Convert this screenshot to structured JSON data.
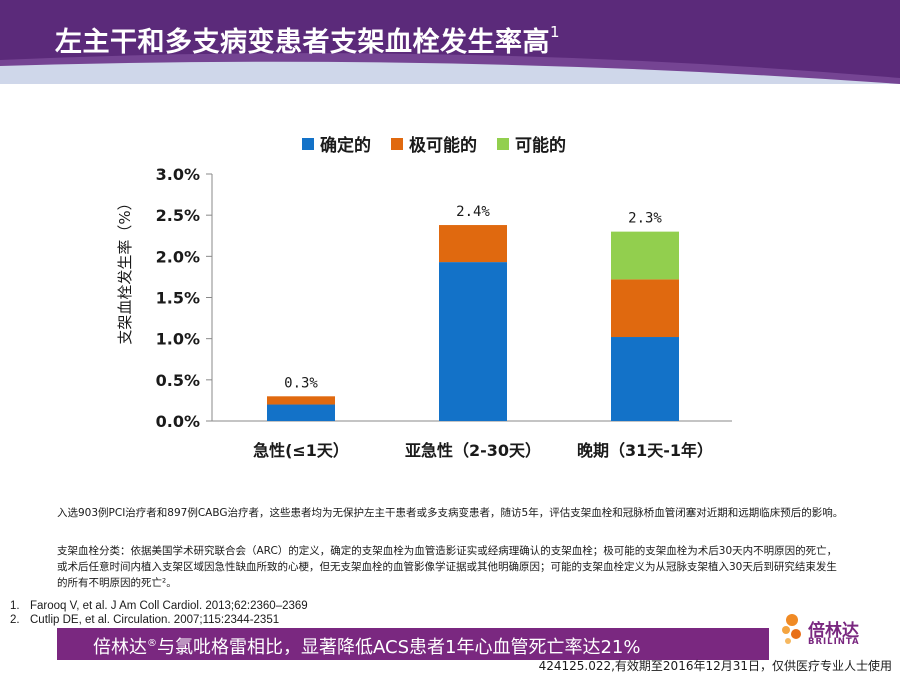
{
  "header": {
    "title": "左主干和多支病变患者支架血栓发生率高",
    "title_ref": "1",
    "colors": {
      "band": "#5b2a7a",
      "band_light": "#6e3a8f",
      "stripe": "#cfd7ea"
    }
  },
  "legend": [
    {
      "label": "确定的",
      "color": "#1372c8"
    },
    {
      "label": "极可能的",
      "color": "#e0690f"
    },
    {
      "label": "可能的",
      "color": "#92cf4e"
    }
  ],
  "chart_data": {
    "type": "bar",
    "stacked": true,
    "categories": [
      "急性(≤1天）",
      "亚急性（2-30天）",
      "晚期（31天-1年）"
    ],
    "series": [
      {
        "name": "确定的",
        "color": "#1372c8",
        "values": [
          0.2,
          1.93,
          1.02
        ]
      },
      {
        "name": "极可能的",
        "color": "#e0690f",
        "values": [
          0.1,
          0.45,
          0.7
        ]
      },
      {
        "name": "可能的",
        "color": "#92cf4e",
        "values": [
          0.0,
          0.0,
          0.58
        ]
      }
    ],
    "totals": [
      "0.3%",
      "2.4%",
      "2.3%"
    ],
    "ylabel": "支架血栓发生率（%）",
    "ylim": [
      0,
      3.0
    ],
    "yticks": [
      "0.0%",
      "0.5%",
      "1.0%",
      "1.5%",
      "2.0%",
      "2.5%",
      "3.0%"
    ],
    "legend_position": "top",
    "grid": false
  },
  "notes": {
    "para1": "入选903例PCI治疗者和897例CABG治疗者，这些患者均为无保护左主干患者或多支病变患者，随访5年，评估支架血栓和冠脉桥血管闭塞对近期和远期临床预后的影响。",
    "para2": "支架血栓分类：依据美国学术研究联合会（ARC）的定义，确定的支架血栓为血管造影证实或经病理确认的支架血栓；极可能的支架血栓为术后30天内不明原因的死亡，或术后任意时间内植入支架区域因急性缺血所致的心梗，但无支架血栓的血管影像学证据或其他明确原因；可能的支架血栓定义为从冠脉支架植入30天后到研究结束发生的所有不明原因的死亡²。"
  },
  "references": [
    {
      "num": "1.",
      "text": "Farooq V, et al. J Am Coll Cardiol. 2013;62:2360–2369"
    },
    {
      "num": "2.",
      "text": "Cutlip DE, et al. Circulation. 2007;115:2344-2351"
    }
  ],
  "bottom_bar": {
    "brand": "倍林达",
    "reg": "®",
    "text": "与氯吡格雷相比，显著降低ACS患者1年心血管死亡率达21%"
  },
  "footer": "424125.022,有效期至2016年12月31日，仅供医疗专业人士使用",
  "logo": {
    "cn": "倍林达",
    "en": "BRILINTA"
  }
}
